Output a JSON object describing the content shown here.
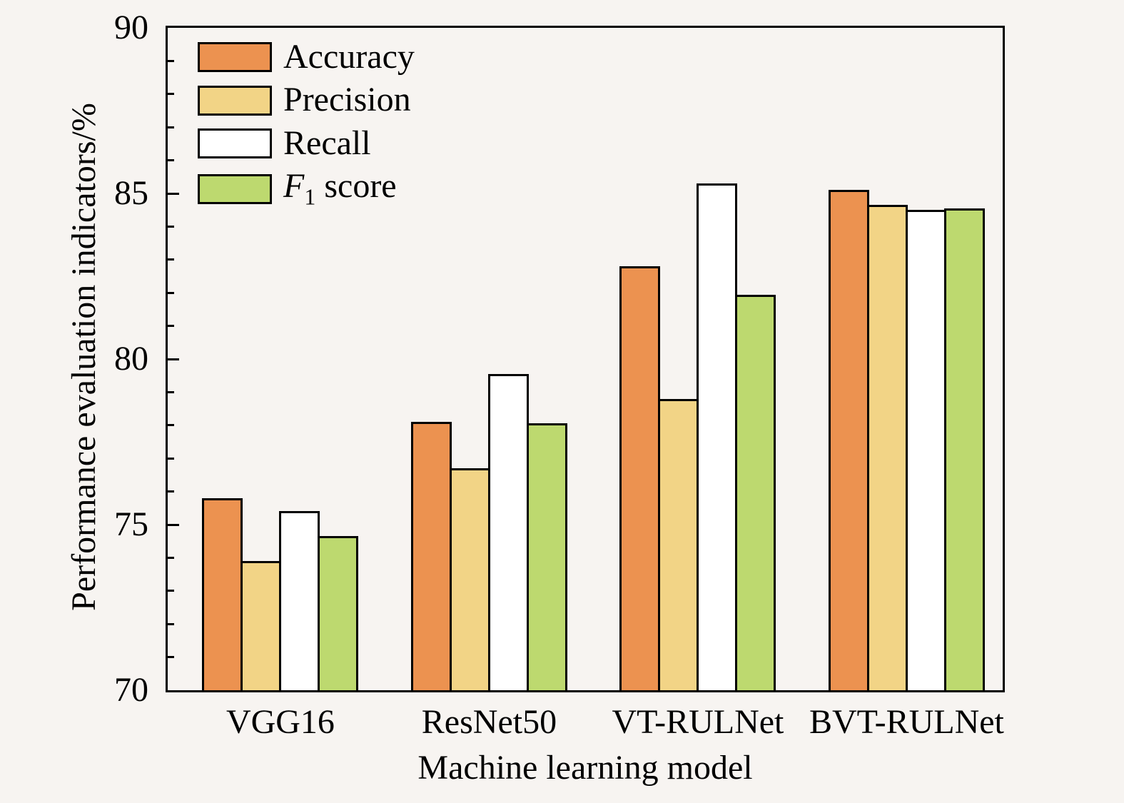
{
  "chart_data": {
    "type": "bar",
    "title": "",
    "xlabel": "Machine learning model",
    "ylabel": "Performance evaluation indicators/%",
    "ylim": [
      70,
      90
    ],
    "yticks": [
      70,
      75,
      80,
      85,
      90
    ],
    "minor_tick_step": 1,
    "grid": false,
    "legend_position": "top-left",
    "categories": [
      "VGG16",
      "ResNet50",
      "VT-RULNet",
      "BVT-RULNet"
    ],
    "series": [
      {
        "name": "Accuracy",
        "color": "#ec9250",
        "values": [
          75.8,
          78.1,
          82.8,
          85.1
        ]
      },
      {
        "name": "Precision",
        "color": "#f2d486",
        "values": [
          73.9,
          76.7,
          78.8,
          84.65
        ]
      },
      {
        "name": "Recall",
        "color": "#ffffff",
        "values": [
          75.4,
          79.55,
          85.3,
          84.5
        ]
      },
      {
        "name": "F1 score",
        "color": "#bdd96f",
        "values": [
          74.65,
          78.05,
          81.95,
          84.55
        ],
        "label_parts": {
          "italic": "F",
          "sub": "1",
          "rest": " score"
        }
      }
    ]
  }
}
